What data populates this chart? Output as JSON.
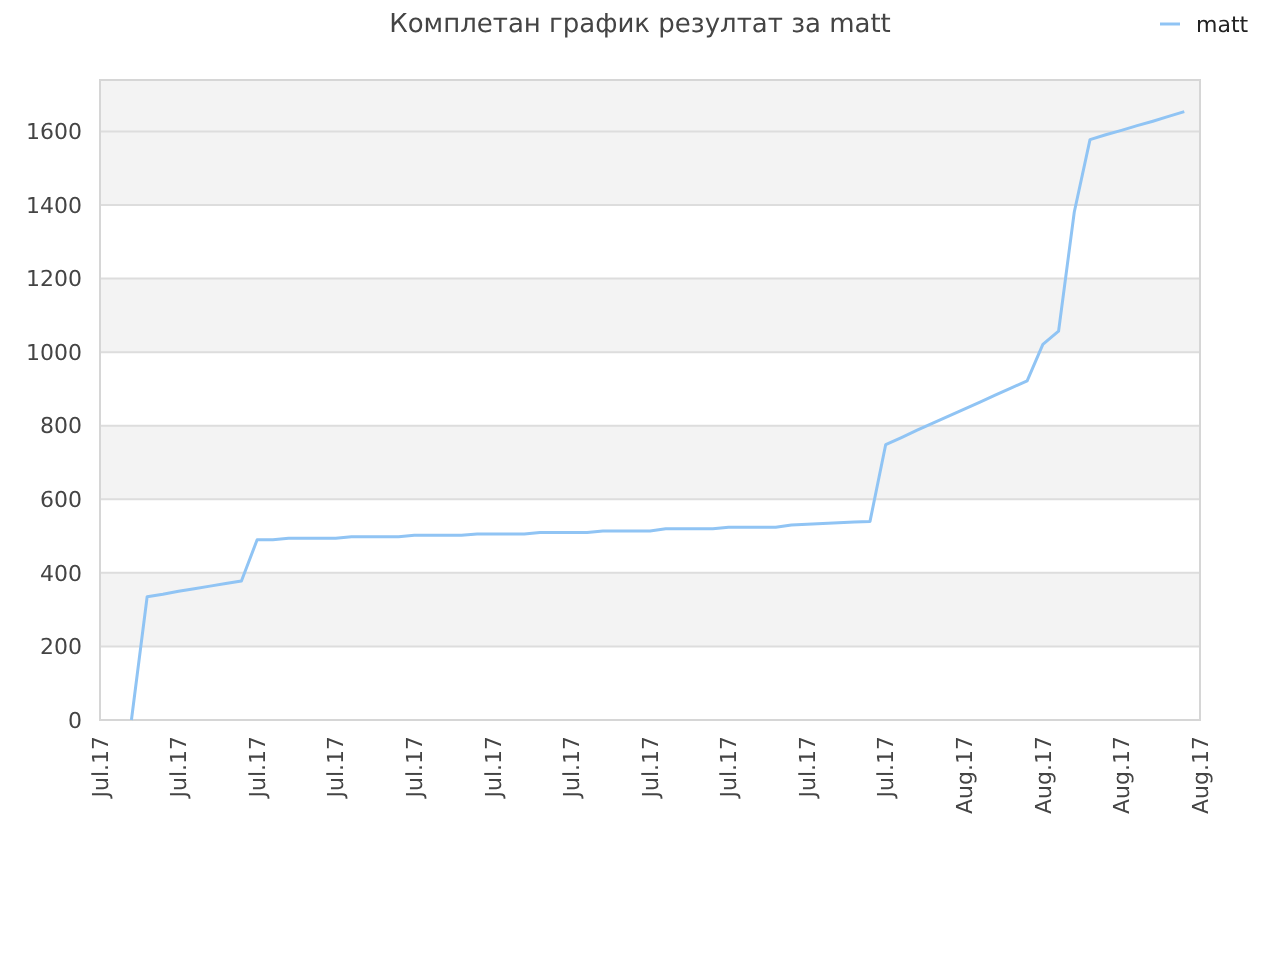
{
  "chart_data": {
    "type": "line",
    "title": "Комплетан график резултат за matt",
    "categories": [
      "Jul.17",
      null,
      null,
      null,
      null,
      "Jul.17",
      null,
      null,
      null,
      null,
      "Jul.17",
      null,
      null,
      null,
      null,
      "Jul.17",
      null,
      null,
      null,
      null,
      "Jul.17",
      null,
      null,
      null,
      null,
      "Jul.17",
      null,
      null,
      null,
      null,
      "Jul.17",
      null,
      null,
      null,
      null,
      "Jul.17",
      null,
      null,
      null,
      null,
      "Jul.17",
      null,
      null,
      null,
      null,
      "Jul.17",
      null,
      null,
      null,
      null,
      "Jul.17",
      null,
      null,
      null,
      null,
      "Aug.17",
      null,
      null,
      null,
      null,
      "Aug.17",
      null,
      null,
      null,
      null,
      "Aug.17",
      null,
      null,
      null,
      null,
      "Aug.17"
    ],
    "series": [
      {
        "name": "matt",
        "color": "#90c4f4",
        "values": [
          null,
          null,
          0,
          335,
          342,
          350,
          357,
          364,
          371,
          378,
          490,
          490,
          494,
          494,
          494,
          494,
          498,
          498,
          498,
          498,
          502,
          502,
          502,
          502,
          506,
          506,
          506,
          506,
          510,
          510,
          510,
          510,
          514,
          514,
          514,
          514,
          520,
          520,
          520,
          520,
          524,
          524,
          524,
          524,
          530,
          532,
          534,
          536,
          538,
          540,
          749,
          768,
          788,
          807,
          826,
          845,
          864,
          884,
          903,
          922,
          1021,
          1057,
          1381,
          1578,
          1591,
          1603,
          1616,
          1628,
          1641,
          1654,
          null
        ]
      }
    ],
    "ylim": [
      0,
      1740
    ],
    "yticks": [
      0,
      200,
      400,
      600,
      800,
      1000,
      1200,
      1400,
      1600
    ],
    "grid": "y",
    "legend": "top right",
    "marker": "none",
    "line_style": "solid"
  }
}
